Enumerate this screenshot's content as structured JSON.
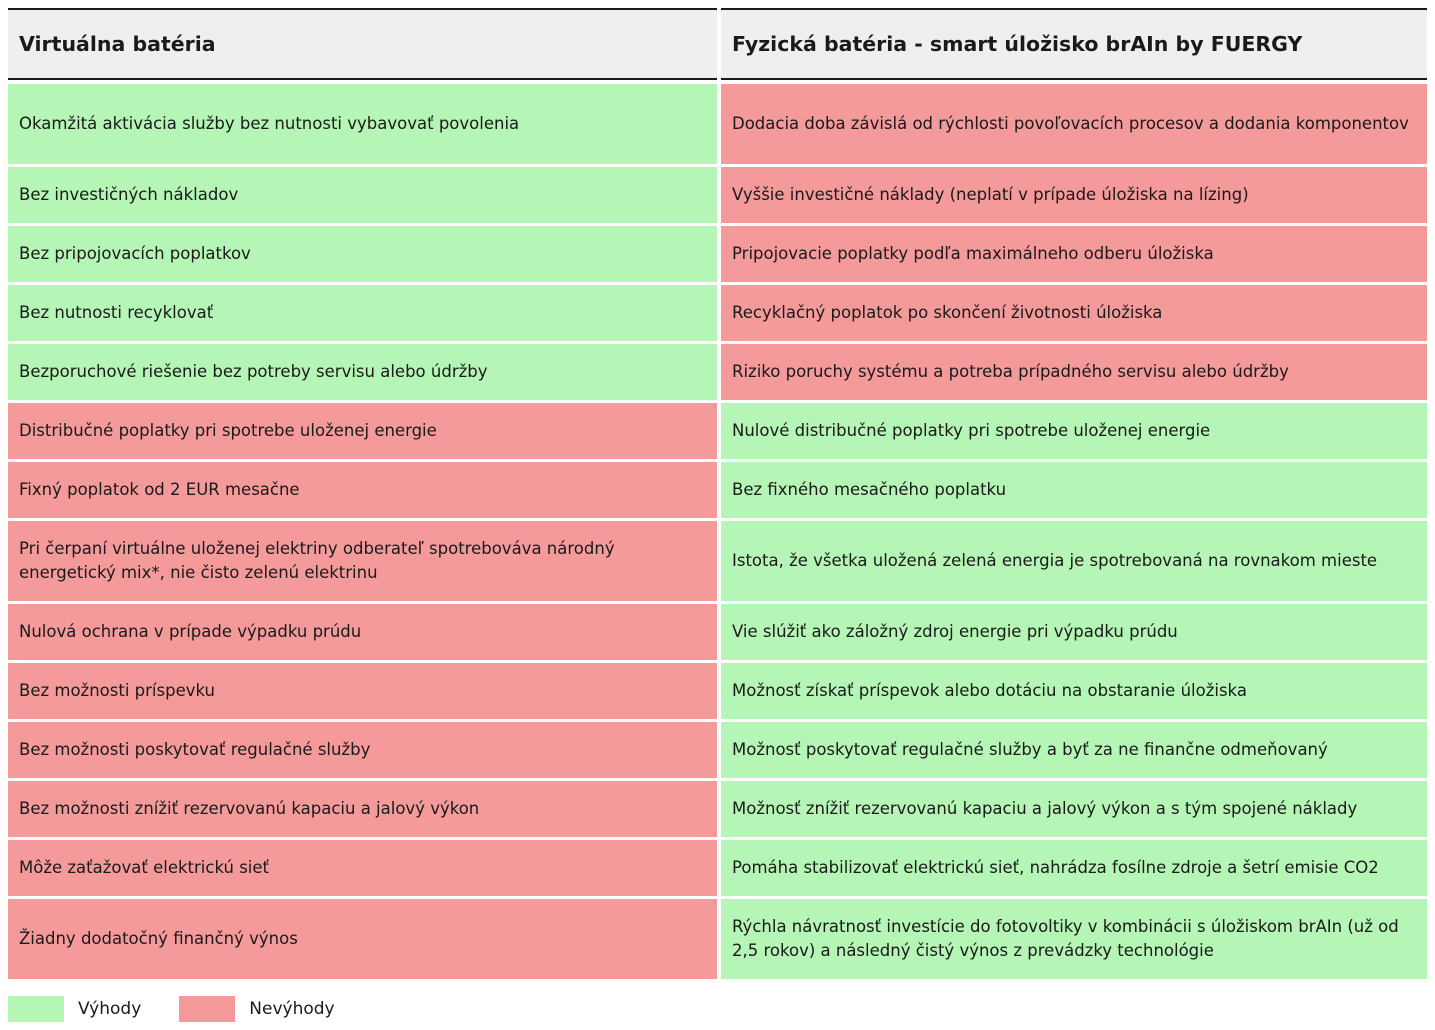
{
  "header": {
    "left": "Virtuálna batéria",
    "right": "Fyzická batéria - smart úložisko brAIn by FUERGY"
  },
  "rows": [
    {
      "left": "Okamžitá aktivácia služby bez nutnosti vybavovať povolenia",
      "right": "Dodacia doba závislá od rýchlosti povoľovacích procesov a dodania komponentov",
      "left_kind": "pro",
      "right_kind": "con",
      "h": 80
    },
    {
      "left": "Bez investičných nákladov",
      "right": "Vyššie investičné náklady (neplatí v prípade úložiska na lízing)",
      "left_kind": "pro",
      "right_kind": "con",
      "h": 56
    },
    {
      "left": "Bez pripojovacích poplatkov",
      "right": "Pripojovacie poplatky podľa maximálneho odberu úložiska",
      "left_kind": "pro",
      "right_kind": "con",
      "h": 56
    },
    {
      "left": "Bez nutnosti recyklovať",
      "right": "Recyklačný poplatok po skončení životnosti úložiska",
      "left_kind": "pro",
      "right_kind": "con",
      "h": 56
    },
    {
      "left": "Bezporuchové riešenie bez potreby servisu alebo údržby",
      "right": "Riziko poruchy systému a potreba prípadného servisu alebo údržby",
      "left_kind": "pro",
      "right_kind": "con",
      "h": 56
    },
    {
      "left": "Distribučné poplatky pri spotrebe uloženej energie",
      "right": "Nulové distribučné poplatky pri spotrebe uloženej energie",
      "left_kind": "con",
      "right_kind": "pro",
      "h": 56
    },
    {
      "left": "Fixný poplatok od 2 EUR mesačne",
      "right": "Bez fixného mesačného poplatku",
      "left_kind": "con",
      "right_kind": "pro",
      "h": 56
    },
    {
      "left": "Pri čerpaní virtuálne uloženej elektriny odberateľ spotrebováva národný energetický mix*, nie čisto zelenú elektrinu",
      "right": "Istota, že všetka uložená zelená energia je spotrebovaná na rovnakom mieste",
      "left_kind": "con",
      "right_kind": "pro",
      "h": 80
    },
    {
      "left": "Nulová ochrana v prípade výpadku prúdu",
      "right": "Vie slúžiť ako záložný zdroj energie pri výpadku prúdu",
      "left_kind": "con",
      "right_kind": "pro",
      "h": 56
    },
    {
      "left": "Bez možnosti príspevku",
      "right": "Možnosť získať príspevok alebo dotáciu na obstaranie úložiska",
      "left_kind": "con",
      "right_kind": "pro",
      "h": 56
    },
    {
      "left": "Bez možnosti poskytovať regulačné služby",
      "right": "Možnosť poskytovať regulačné služby a byť za ne finančne odmeňovaný",
      "left_kind": "con",
      "right_kind": "pro",
      "h": 56
    },
    {
      "left": "Bez možnosti znížiť rezervovanú kapaciu a jalový výkon",
      "right": "Možnosť znížiť rezervovanú kapaciu a jalový výkon a s tým spojené náklady",
      "left_kind": "con",
      "right_kind": "pro",
      "h": 56
    },
    {
      "left": "Môže zaťažovať elektrickú sieť",
      "right": "Pomáha stabilizovať elektrickú sieť, nahrádza fosílne zdroje a šetrí emisie CO2",
      "left_kind": "con",
      "right_kind": "pro",
      "h": 56
    },
    {
      "left": "Žiadny dodatočný finančný výnos",
      "right": "Rýchla návratnosť investície do fotovoltiky v kombinácii s úložiskom brAIn (už od 2,5 rokov) a následný čistý výnos z prevádzky technológie",
      "left_kind": "con",
      "right_kind": "pro",
      "h": 80
    }
  ],
  "legend": {
    "pro_label": "Výhody",
    "con_label": "Nevýhody"
  },
  "colors": {
    "pro": "#b5f5b5",
    "con": "#f49a9a",
    "header_bg": "#efefef"
  }
}
